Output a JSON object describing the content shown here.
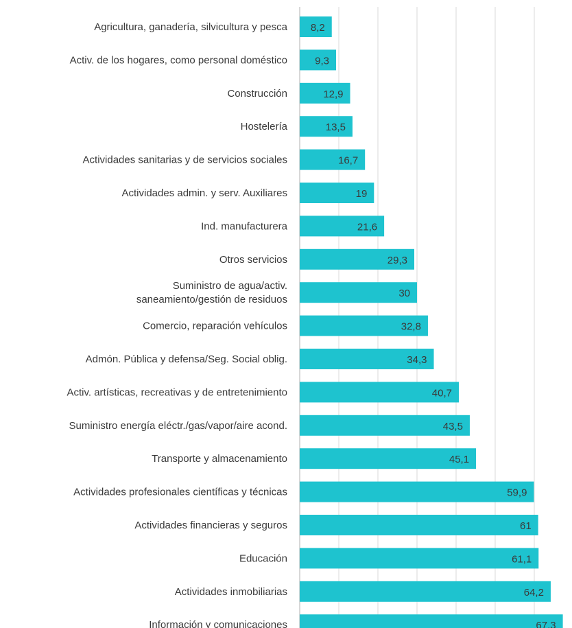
{
  "chart_data": {
    "type": "bar",
    "orientation": "horizontal",
    "categories": [
      "Agricultura, ganadería, silvicultura y pesca",
      "Activ. de los hogares, como personal doméstico",
      "Construcción",
      "Hostelería",
      "Actividades sanitarias y de servicios sociales",
      "Actividades admin. y serv. Auxiliares",
      "Ind. manufacturera",
      "Otros servicios",
      "Suministro de agua/activ. saneamiento/gestión de residuos",
      "Comercio, reparación vehículos",
      "Admón. Pública y defensa/Seg. Social oblig.",
      "Activ. artísticas, recreativas y de entretenimiento",
      "Suministro energía eléctr./gas/vapor/aire acond.",
      "Transporte y almacenamiento",
      "Actividades profesionales científicas y técnicas",
      "Actividades financieras y seguros",
      "Educación",
      "Actividades inmobiliarias",
      "Información y comunicaciones"
    ],
    "category_lines": [
      [
        "Agricultura, ganadería, silvicultura y pesca"
      ],
      [
        "Activ. de los hogares, como personal doméstico"
      ],
      [
        "Construcción"
      ],
      [
        "Hostelería"
      ],
      [
        "Actividades sanitarias y de servicios sociales"
      ],
      [
        "Actividades admin. y serv. Auxiliares"
      ],
      [
        "Ind. manufacturera"
      ],
      [
        "Otros servicios"
      ],
      [
        "Suministro de agua/activ.",
        "saneamiento/gestión de residuos"
      ],
      [
        "Comercio, reparación vehículos"
      ],
      [
        "Admón. Pública y defensa/Seg. Social oblig."
      ],
      [
        "Activ. artísticas, recreativas y de entretenimiento"
      ],
      [
        "Suministro energía eléctr./gas/vapor/aire acond."
      ],
      [
        "Transporte y almacenamiento"
      ],
      [
        "Actividades profesionales científicas y técnicas"
      ],
      [
        "Actividades financieras y seguros"
      ],
      [
        "Educación"
      ],
      [
        "Actividades inmobiliarias"
      ],
      [
        "Información y comunicaciones"
      ]
    ],
    "values": [
      8.2,
      9.3,
      12.9,
      13.5,
      16.7,
      19,
      21.6,
      29.3,
      30,
      32.8,
      34.3,
      40.7,
      43.5,
      45.1,
      59.9,
      61,
      61.1,
      64.2,
      67.3
    ],
    "value_labels": [
      "8,2",
      "9,3",
      "12,9",
      "13,5",
      "16,7",
      "19",
      "21,6",
      "29,3",
      "30",
      "32,8",
      "34,3",
      "40,7",
      "43,5",
      "45,1",
      "59,9",
      "61",
      "61,1",
      "64,2",
      "67,3"
    ],
    "xlim": [
      0,
      70
    ],
    "x_gridlines": [
      0,
      10,
      20,
      30,
      40,
      50,
      60,
      70
    ],
    "grid": true,
    "bar_color": "#1ec3cf",
    "title": "",
    "xlabel": "",
    "ylabel": ""
  }
}
